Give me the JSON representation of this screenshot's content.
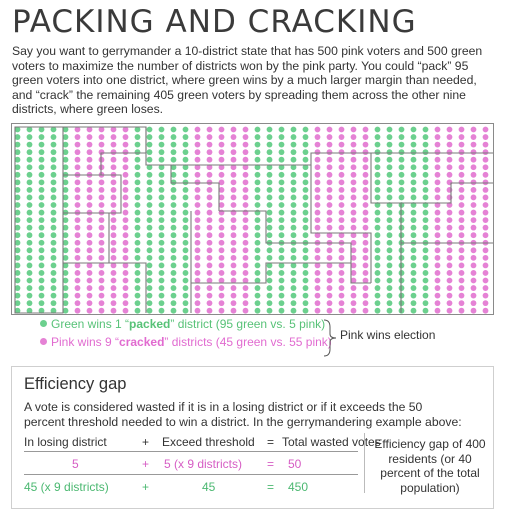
{
  "title": "PACKING AND CRACKING",
  "intro": "Say you want to gerrymander a 10-district state that has 500 pink voters and 500 green voters to maximize the number of districts won by the pink party. You could “pack” 95 green voters into one district, where green wins by a much larger margin than needed, and “crack” the remaining 405 green voters by spreading them across the other nine districts, where green loses.",
  "colors": {
    "green": "#6cd08e",
    "pink": "#e582d5",
    "green_text": "#58c278",
    "pink_text": "#e16bd0"
  },
  "grid": {
    "columns": 40,
    "rows": 25,
    "column_colors": [
      "green",
      "green",
      "green",
      "green",
      "green",
      "pink",
      "pink",
      "pink",
      "pink",
      "pink",
      "green",
      "green",
      "green",
      "green",
      "green",
      "pink",
      "pink",
      "pink",
      "pink",
      "pink",
      "green",
      "green",
      "green",
      "green",
      "green",
      "pink",
      "pink",
      "pink",
      "pink",
      "pink",
      "green",
      "green",
      "green",
      "green",
      "green",
      "pink",
      "pink",
      "pink",
      "pink",
      "pink"
    ]
  },
  "legend": {
    "green_prefix": "Green wins 1 “",
    "green_bold": "packed",
    "green_suffix": "” district (95 green vs. 5 pink)",
    "pink_prefix": "Pink wins 9 “",
    "pink_bold": "cracked",
    "pink_suffix": "” districts (45 green vs. 55 pink)",
    "outcome": "Pink wins election"
  },
  "efficiency": {
    "title": "Efficiency gap",
    "text": "A vote is considered wasted if it is in a losing district or if it exceeds the 50 percent threshold needed to win a district. In the gerrymandering example above:",
    "header": {
      "losing": "In losing district",
      "plus": "+",
      "exceed": "Exceed threshold",
      "equals": "=",
      "total": "Total wasted votes"
    },
    "pink_row": {
      "losing": "5",
      "plus": "+",
      "exceed": "5 (x 9 districts)",
      "equals": "=",
      "total": "50"
    },
    "green_row": {
      "losing": "45 (x 9 districts)",
      "plus": "+",
      "exceed": "45",
      "equals": "=",
      "total": "450"
    },
    "note": "Efficiency gap of 400 residents (or 40 percent of the total population)"
  }
}
